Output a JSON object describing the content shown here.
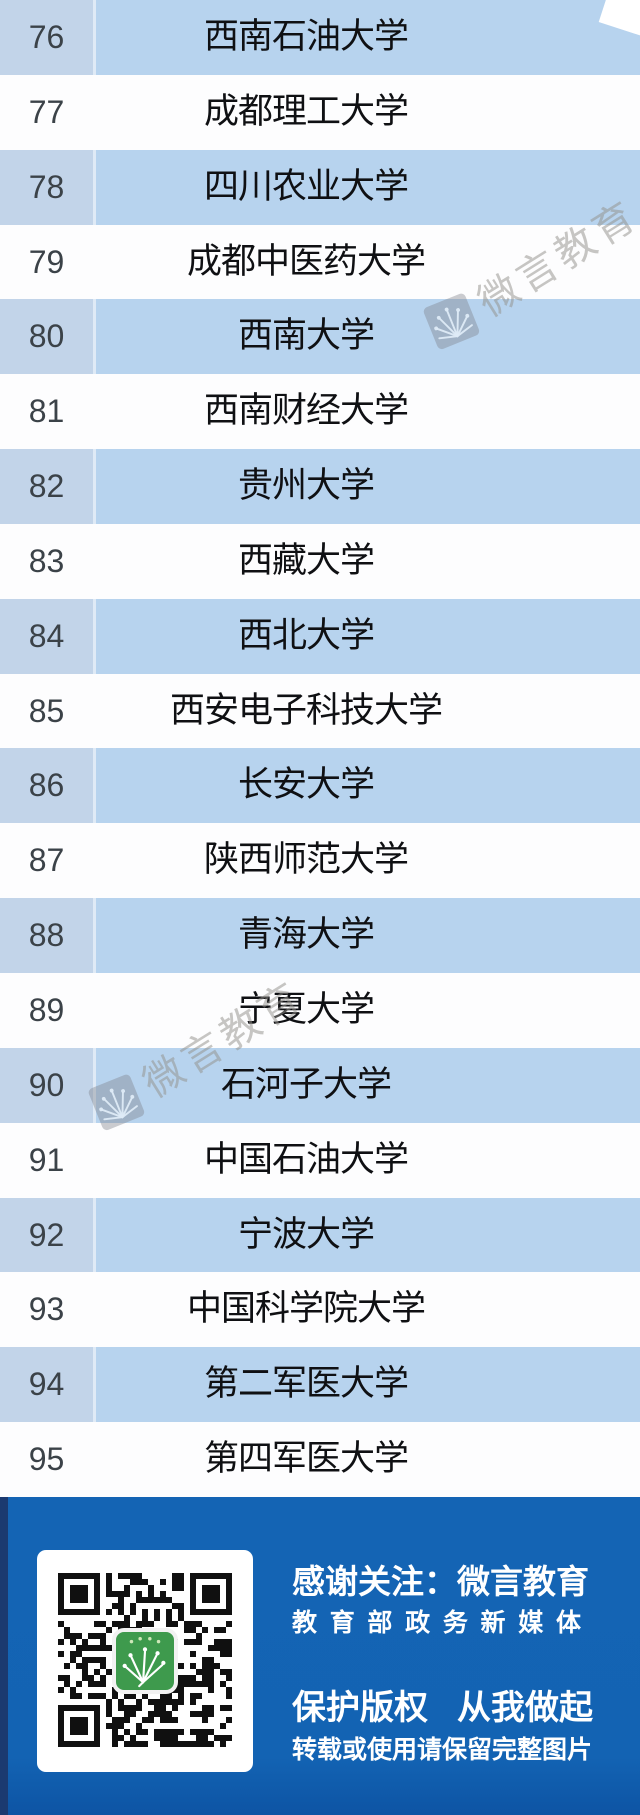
{
  "list": {
    "rows": [
      {
        "rank": "76",
        "name": "西南石油大学"
      },
      {
        "rank": "77",
        "name": "成都理工大学"
      },
      {
        "rank": "78",
        "name": "四川农业大学"
      },
      {
        "rank": "79",
        "name": "成都中医药大学"
      },
      {
        "rank": "80",
        "name": "西南大学"
      },
      {
        "rank": "81",
        "name": "西南财经大学"
      },
      {
        "rank": "82",
        "name": "贵州大学"
      },
      {
        "rank": "83",
        "name": "西藏大学"
      },
      {
        "rank": "84",
        "name": "西北大学"
      },
      {
        "rank": "85",
        "name": "西安电子科技大学"
      },
      {
        "rank": "86",
        "name": "长安大学"
      },
      {
        "rank": "87",
        "name": "陕西师范大学"
      },
      {
        "rank": "88",
        "name": "青海大学"
      },
      {
        "rank": "89",
        "name": "宁夏大学"
      },
      {
        "rank": "90",
        "name": "石河子大学"
      },
      {
        "rank": "91",
        "name": "中国石油大学"
      },
      {
        "rank": "92",
        "name": "宁波大学"
      },
      {
        "rank": "93",
        "name": "中国科学院大学"
      },
      {
        "rank": "94",
        "name": "第二军医大学"
      },
      {
        "rank": "95",
        "name": "第四军医大学"
      }
    ]
  },
  "watermark": {
    "text": "微言教育"
  },
  "footer": {
    "thanks_line": "感谢关注：微言教育",
    "subtitle_line": "教育部政务新媒体",
    "copyright_left": "保护版权",
    "copyright_right": "从我做起",
    "notice_line": "转载或使用请保留完整图片"
  },
  "colors": {
    "row_blue": "#b7d3ee",
    "rank_cell_blue": "#c2d4e9",
    "row_white": "#fdfdfe",
    "footer_blue": "#1363b4",
    "footer_strip": "#1b3a70",
    "logo_green": "#3e9a4d",
    "name_text": "#0f1013",
    "rank_text": "#3b4248"
  }
}
